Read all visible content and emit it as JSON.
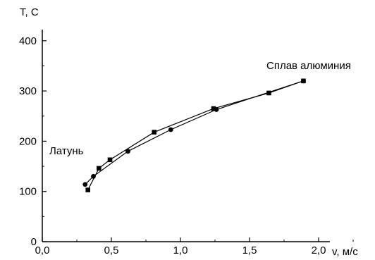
{
  "chart_data": {
    "type": "line",
    "title": "",
    "xlabel": "v, м/с",
    "ylabel": "T, C",
    "xlim": [
      0.0,
      2.25
    ],
    "ylim": [
      0,
      450
    ],
    "x_ticks": [
      {
        "value": 0.0,
        "label": "0,0"
      },
      {
        "value": 0.5,
        "label": "0,5"
      },
      {
        "value": 1.0,
        "label": "1,0"
      },
      {
        "value": 1.5,
        "label": "1,5"
      },
      {
        "value": 2.0,
        "label": "2,0"
      }
    ],
    "y_ticks": [
      {
        "value": 0,
        "label": "0"
      },
      {
        "value": 100,
        "label": "100"
      },
      {
        "value": 200,
        "label": "200"
      },
      {
        "value": 300,
        "label": "300"
      },
      {
        "value": 400,
        "label": "400"
      }
    ],
    "grid": false,
    "series": [
      {
        "name": "",
        "marker": "circle",
        "color": "#000000",
        "x": [
          0.31,
          0.37,
          0.62,
          0.93,
          1.26,
          1.89
        ],
        "y": [
          114,
          130,
          180,
          223,
          263,
          320
        ]
      },
      {
        "name": "",
        "marker": "square",
        "color": "#000000",
        "x": [
          0.33,
          0.41,
          0.49,
          0.81,
          1.24,
          1.64,
          1.89
        ],
        "y": [
          103,
          146,
          163,
          218,
          265,
          296,
          320
        ]
      }
    ],
    "annotations": [
      {
        "text": "Латунь",
        "x": 0.07,
        "y": 205
      },
      {
        "text": "Сплав алюминия",
        "x": 1.62,
        "y": 336
      }
    ]
  }
}
